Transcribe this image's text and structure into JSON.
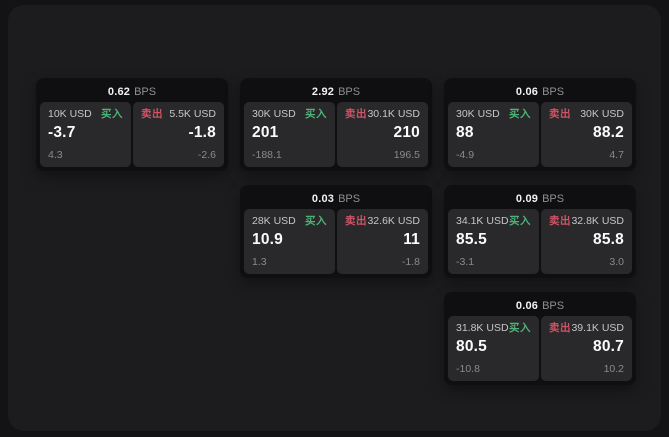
{
  "labels": {
    "buy": "买入",
    "sell": "卖出",
    "unit": "BPS"
  },
  "colors": {
    "buy_green": "#4db377",
    "sell_red": "#cf5364",
    "window_bg": "#1c1c1e",
    "card_bg": "#0f0f11",
    "tile_bg": "#29292b"
  },
  "cards": [
    {
      "bps": "0.62",
      "buy": {
        "size": "10K USD",
        "price": "-3.7",
        "delta": "4.3"
      },
      "sell": {
        "size": "5.5K USD",
        "price": "-1.8",
        "delta": "-2.6"
      }
    },
    {
      "bps": "2.92",
      "buy": {
        "size": "30K USD",
        "price": "201",
        "delta": "-188.1"
      },
      "sell": {
        "size": "30.1K USD",
        "price": "210",
        "delta": "196.5"
      }
    },
    {
      "bps": "0.06",
      "buy": {
        "size": "30K USD",
        "price": "88",
        "delta": "-4.9"
      },
      "sell": {
        "size": "30K USD",
        "price": "88.2",
        "delta": "4.7"
      }
    },
    {
      "bps": "0.03",
      "buy": {
        "size": "28K USD",
        "price": "10.9",
        "delta": "1.3"
      },
      "sell": {
        "size": "32.6K USD",
        "price": "11",
        "delta": "-1.8"
      }
    },
    {
      "bps": "0.09",
      "buy": {
        "size": "34.1K USD",
        "price": "85.5",
        "delta": "-3.1"
      },
      "sell": {
        "size": "32.8K USD",
        "price": "85.8",
        "delta": "3.0"
      }
    },
    {
      "bps": "0.06",
      "buy": {
        "size": "31.8K USD",
        "price": "80.5",
        "delta": "-10.8"
      },
      "sell": {
        "size": "39.1K USD",
        "price": "80.7",
        "delta": "10.2"
      }
    }
  ]
}
